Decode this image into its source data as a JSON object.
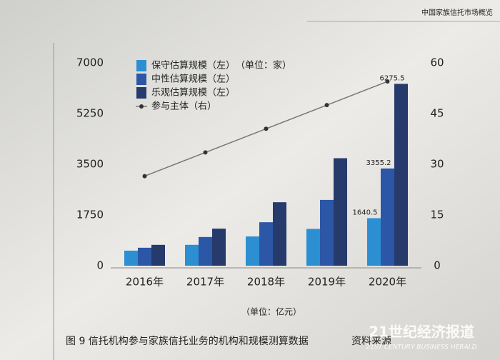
{
  "header": "中国家族信托市场概览",
  "chart_data": {
    "type": "bar",
    "categories": [
      "2016年",
      "2017年",
      "2018年",
      "2019年",
      "2020年"
    ],
    "series": [
      {
        "name": "保守估算规模（左）",
        "color": "#2b8fd2",
        "values": [
          520,
          720,
          1010,
          1270,
          1640.5
        ],
        "value_labels": [
          null,
          null,
          null,
          null,
          "1640.5"
        ]
      },
      {
        "name": "中性估算规模（左）",
        "color": "#2c56a6",
        "values": [
          620,
          990,
          1500,
          2270,
          3355.2
        ],
        "value_labels": [
          null,
          null,
          null,
          null,
          "3355.2"
        ]
      },
      {
        "name": "乐观估算规模（左）",
        "color": "#263b6c",
        "values": [
          720,
          1280,
          2190,
          3710,
          6275.5
        ],
        "value_labels": [
          null,
          null,
          null,
          null,
          "6275.5"
        ]
      },
      {
        "name": "参与主体（右）",
        "type": "line",
        "axis": "y2",
        "color": "#777777",
        "marker_color": "#333333",
        "values": [
          26.5,
          33.5,
          40.5,
          47.5,
          54.5
        ]
      }
    ],
    "ylim": [
      0,
      7000
    ],
    "yticks": [
      0,
      1750,
      3500,
      5250,
      7000
    ],
    "y2lim": [
      0,
      60
    ],
    "y2ticks": [
      0,
      15,
      30,
      45,
      60
    ],
    "y2_unit": "（单位：家）",
    "y_unit": "（单位：亿元）",
    "caption": "图 9  信托机构参与家族信托业务的机构和规模测算数据",
    "source": "资料来源",
    "watermark": "21世纪经济报道",
    "watermark_sub": "21ST CENTURY BUSINESS HERALD"
  }
}
